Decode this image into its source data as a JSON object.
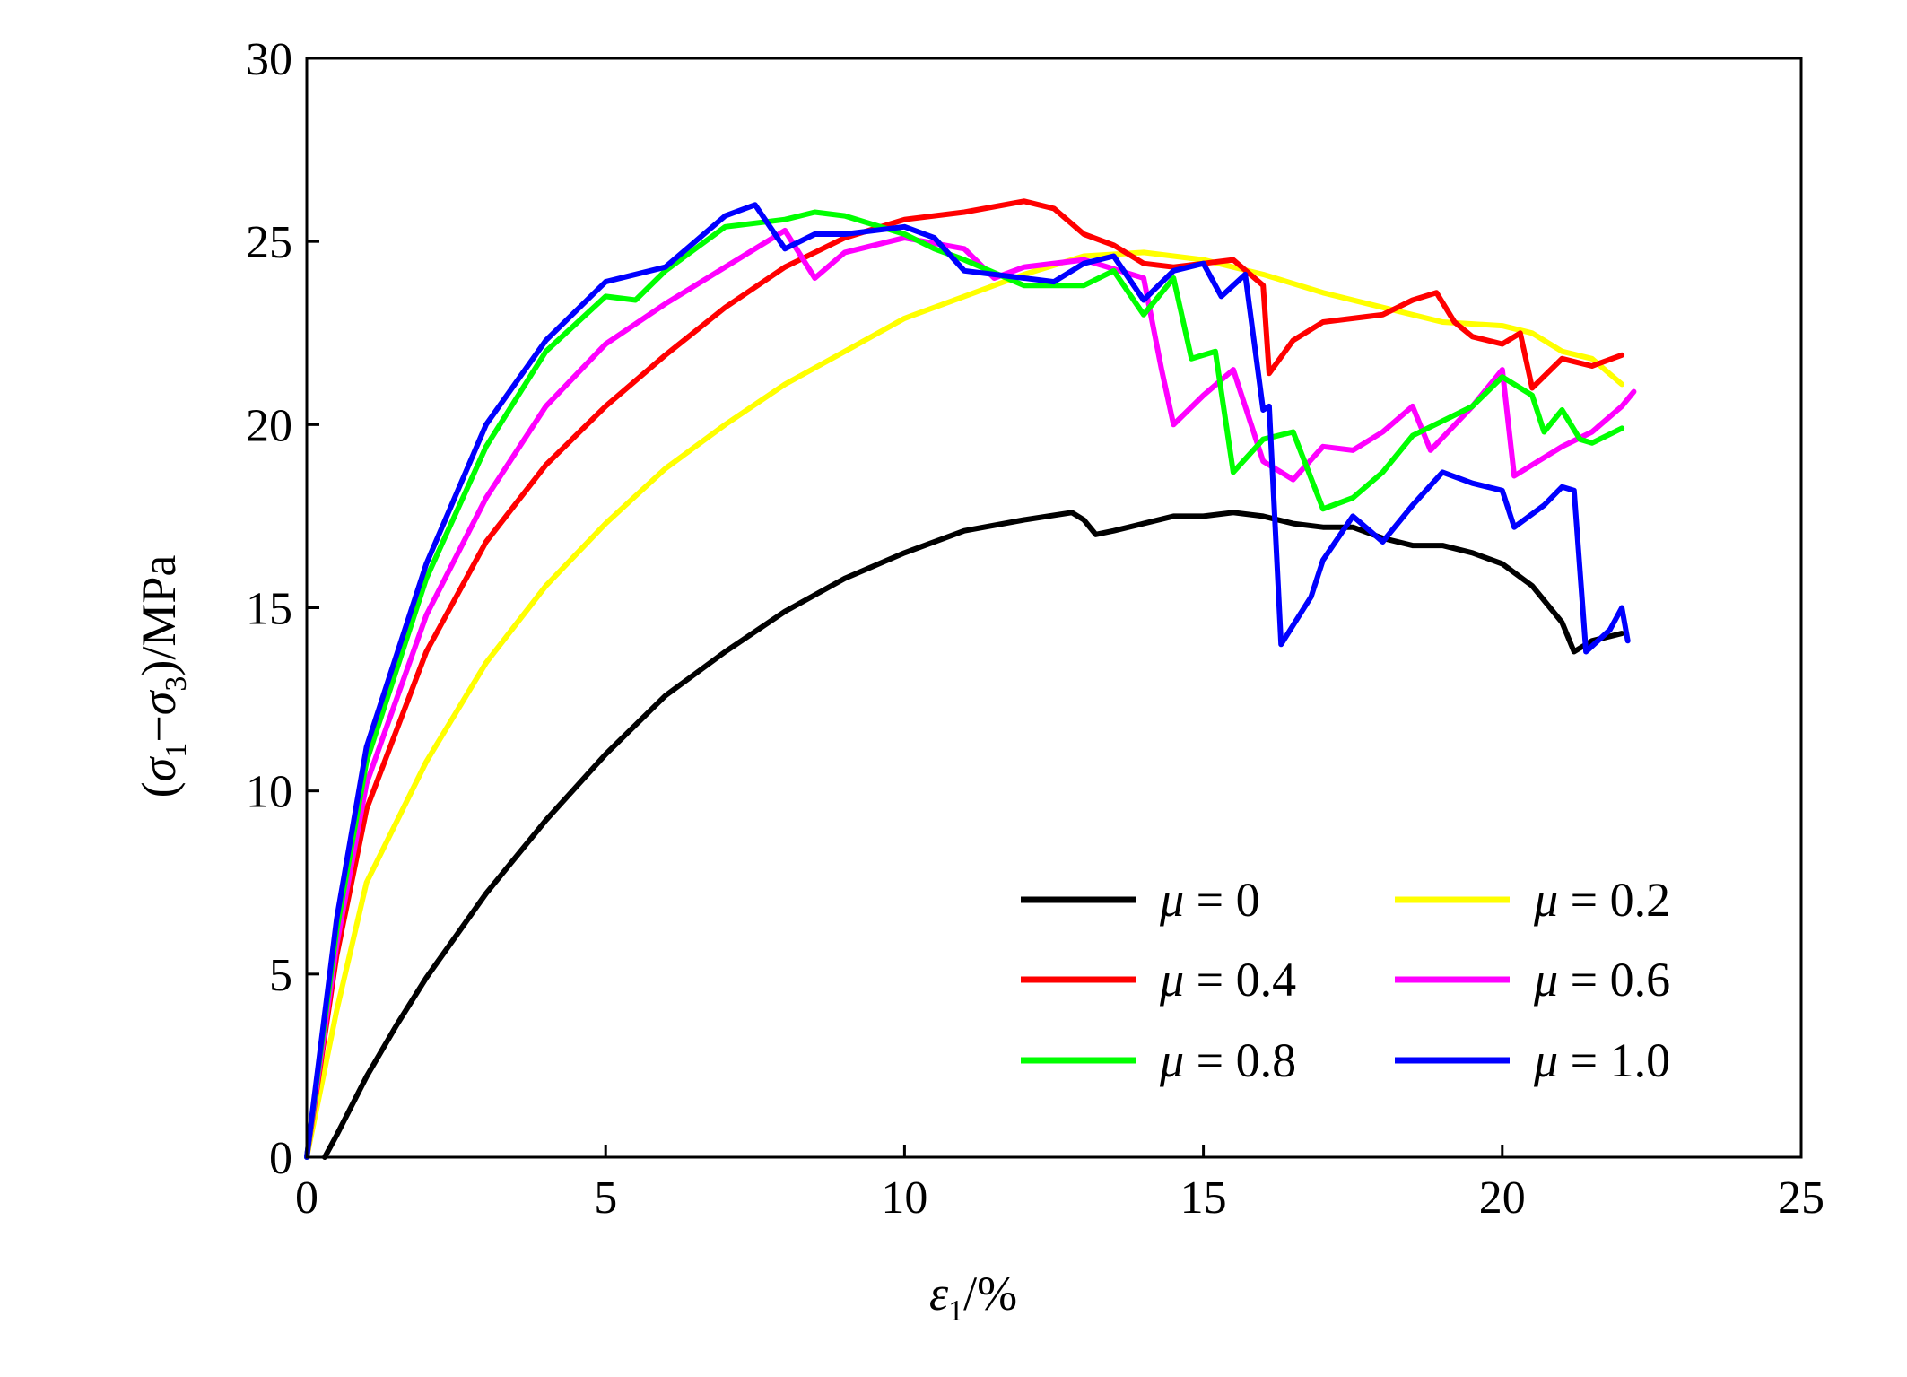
{
  "chart_data": {
    "type": "line",
    "xlabel": {
      "var": "ε",
      "sub": "1",
      "rest": "/%"
    },
    "ylabel": {
      "open": "(",
      "v1": "σ",
      "s1": "1",
      "minus": "−",
      "v2": "σ",
      "s2": "3",
      "rest": ")/MPa"
    },
    "xlim": [
      0,
      25
    ],
    "ylim": [
      0,
      30
    ],
    "xticks": [
      0,
      5,
      10,
      15,
      20,
      25
    ],
    "yticks": [
      0,
      5,
      10,
      15,
      20,
      25,
      30
    ],
    "grid": false,
    "legend_position": "lower-right",
    "series": [
      {
        "name": "μ = 0",
        "sym": "μ",
        "eq": " = 0",
        "color": "#000000",
        "points": [
          [
            0.3,
            0
          ],
          [
            0.5,
            0.6
          ],
          [
            1,
            2.2
          ],
          [
            1.5,
            3.6
          ],
          [
            2,
            4.9
          ],
          [
            3,
            7.2
          ],
          [
            4,
            9.2
          ],
          [
            5,
            11
          ],
          [
            6,
            12.6
          ],
          [
            7,
            13.8
          ],
          [
            8,
            14.9
          ],
          [
            9,
            15.8
          ],
          [
            10,
            16.5
          ],
          [
            11,
            17.1
          ],
          [
            12,
            17.4
          ],
          [
            12.8,
            17.6
          ],
          [
            13,
            17.4
          ],
          [
            13.2,
            17.0
          ],
          [
            13.5,
            17.1
          ],
          [
            14,
            17.3
          ],
          [
            14.5,
            17.5
          ],
          [
            15,
            17.5
          ],
          [
            15.5,
            17.6
          ],
          [
            16,
            17.5
          ],
          [
            16.5,
            17.3
          ],
          [
            17,
            17.2
          ],
          [
            17.5,
            17.2
          ],
          [
            18,
            16.9
          ],
          [
            18.5,
            16.7
          ],
          [
            19,
            16.7
          ],
          [
            19.5,
            16.5
          ],
          [
            20,
            16.2
          ],
          [
            20.5,
            15.6
          ],
          [
            21,
            14.6
          ],
          [
            21.2,
            13.8
          ],
          [
            21.5,
            14.1
          ],
          [
            22,
            14.3
          ]
        ]
      },
      {
        "name": "μ = 0.2",
        "sym": "μ",
        "eq": " = 0.2",
        "color": "#ffff00",
        "points": [
          [
            0,
            0
          ],
          [
            0.5,
            4
          ],
          [
            1,
            7.5
          ],
          [
            2,
            10.8
          ],
          [
            3,
            13.5
          ],
          [
            4,
            15.6
          ],
          [
            5,
            17.3
          ],
          [
            6,
            18.8
          ],
          [
            7,
            20.0
          ],
          [
            8,
            21.1
          ],
          [
            9,
            22.0
          ],
          [
            10,
            22.9
          ],
          [
            11,
            23.5
          ],
          [
            12,
            24.1
          ],
          [
            13,
            24.6
          ],
          [
            14,
            24.7
          ],
          [
            15,
            24.5
          ],
          [
            16,
            24.1
          ],
          [
            17,
            23.6
          ],
          [
            18,
            23.2
          ],
          [
            19,
            22.8
          ],
          [
            20,
            22.7
          ],
          [
            20.5,
            22.5
          ],
          [
            21,
            22.0
          ],
          [
            21.5,
            21.8
          ],
          [
            22,
            21.1
          ]
        ]
      },
      {
        "name": "μ = 0.4",
        "sym": "μ",
        "eq": " = 0.4",
        "color": "#ff0000",
        "points": [
          [
            0,
            0
          ],
          [
            0.5,
            5.5
          ],
          [
            1,
            9.5
          ],
          [
            2,
            13.8
          ],
          [
            3,
            16.8
          ],
          [
            4,
            18.9
          ],
          [
            5,
            20.5
          ],
          [
            6,
            21.9
          ],
          [
            7,
            23.2
          ],
          [
            8,
            24.3
          ],
          [
            9,
            25.1
          ],
          [
            10,
            25.6
          ],
          [
            11,
            25.8
          ],
          [
            12,
            26.1
          ],
          [
            12.5,
            25.9
          ],
          [
            13,
            25.2
          ],
          [
            13.5,
            24.9
          ],
          [
            14,
            24.4
          ],
          [
            14.5,
            24.3
          ],
          [
            15,
            24.4
          ],
          [
            15.5,
            24.5
          ],
          [
            16,
            23.8
          ],
          [
            16.1,
            21.4
          ],
          [
            16.5,
            22.3
          ],
          [
            17,
            22.8
          ],
          [
            17.5,
            22.9
          ],
          [
            18,
            23.0
          ],
          [
            18.5,
            23.4
          ],
          [
            18.9,
            23.6
          ],
          [
            19.2,
            22.8
          ],
          [
            19.5,
            22.4
          ],
          [
            20,
            22.2
          ],
          [
            20.3,
            22.5
          ],
          [
            20.5,
            21.0
          ],
          [
            21,
            21.8
          ],
          [
            21.5,
            21.6
          ],
          [
            22,
            21.9
          ]
        ]
      },
      {
        "name": "μ = 0.6",
        "sym": "μ",
        "eq": " = 0.6",
        "color": "#ff00ff",
        "points": [
          [
            0,
            0
          ],
          [
            0.5,
            5.8
          ],
          [
            1,
            10.2
          ],
          [
            2,
            14.8
          ],
          [
            3,
            18.0
          ],
          [
            4,
            20.5
          ],
          [
            5,
            22.2
          ],
          [
            6,
            23.3
          ],
          [
            7,
            24.3
          ],
          [
            8,
            25.3
          ],
          [
            8.5,
            24.0
          ],
          [
            9,
            24.7
          ],
          [
            10,
            25.1
          ],
          [
            11,
            24.8
          ],
          [
            11.5,
            24.0
          ],
          [
            12,
            24.3
          ],
          [
            13,
            24.5
          ],
          [
            14,
            24.0
          ],
          [
            14.3,
            21.5
          ],
          [
            14.5,
            20.0
          ],
          [
            15,
            20.8
          ],
          [
            15.5,
            21.5
          ],
          [
            16,
            19.0
          ],
          [
            16.5,
            18.5
          ],
          [
            17,
            19.4
          ],
          [
            17.5,
            19.3
          ],
          [
            18,
            19.8
          ],
          [
            18.5,
            20.5
          ],
          [
            18.8,
            19.3
          ],
          [
            19.5,
            20.5
          ],
          [
            20,
            21.5
          ],
          [
            20.2,
            18.6
          ],
          [
            21,
            19.4
          ],
          [
            21.5,
            19.8
          ],
          [
            22,
            20.5
          ],
          [
            22.2,
            20.9
          ]
        ]
      },
      {
        "name": "μ = 0.8",
        "sym": "μ",
        "eq": " = 0.8",
        "color": "#00ff00",
        "points": [
          [
            0,
            0
          ],
          [
            0.5,
            6.2
          ],
          [
            1,
            10.8
          ],
          [
            2,
            15.8
          ],
          [
            3,
            19.4
          ],
          [
            4,
            22.0
          ],
          [
            5,
            23.5
          ],
          [
            5.5,
            23.4
          ],
          [
            6,
            24.2
          ],
          [
            7,
            25.4
          ],
          [
            8,
            25.6
          ],
          [
            8.5,
            25.8
          ],
          [
            9,
            25.7
          ],
          [
            10,
            25.2
          ],
          [
            10.5,
            24.8
          ],
          [
            11,
            24.5
          ],
          [
            12,
            23.8
          ],
          [
            13,
            23.8
          ],
          [
            13.5,
            24.2
          ],
          [
            14,
            23.0
          ],
          [
            14.5,
            24.0
          ],
          [
            14.8,
            21.8
          ],
          [
            15.2,
            22.0
          ],
          [
            15.5,
            18.7
          ],
          [
            16,
            19.6
          ],
          [
            16.5,
            19.8
          ],
          [
            17,
            17.7
          ],
          [
            17.5,
            18.0
          ],
          [
            18,
            18.7
          ],
          [
            18.5,
            19.7
          ],
          [
            19,
            20.1
          ],
          [
            19.5,
            20.5
          ],
          [
            20,
            21.3
          ],
          [
            20.5,
            20.8
          ],
          [
            20.7,
            19.8
          ],
          [
            21,
            20.4
          ],
          [
            21.3,
            19.6
          ],
          [
            21.5,
            19.5
          ],
          [
            22,
            19.9
          ]
        ]
      },
      {
        "name": "μ = 1.0",
        "sym": "μ",
        "eq": " = 1.0",
        "color": "#0000ff",
        "points": [
          [
            0,
            0
          ],
          [
            0.5,
            6.5
          ],
          [
            1,
            11.2
          ],
          [
            2,
            16.2
          ],
          [
            3,
            20.0
          ],
          [
            4,
            22.3
          ],
          [
            5,
            23.9
          ],
          [
            6,
            24.3
          ],
          [
            7,
            25.7
          ],
          [
            7.5,
            26.0
          ],
          [
            8,
            24.8
          ],
          [
            8.5,
            25.2
          ],
          [
            9,
            25.2
          ],
          [
            10,
            25.4
          ],
          [
            10.5,
            25.1
          ],
          [
            11,
            24.2
          ],
          [
            12,
            24.0
          ],
          [
            12.5,
            23.9
          ],
          [
            13,
            24.4
          ],
          [
            13.5,
            24.6
          ],
          [
            14,
            23.4
          ],
          [
            14.5,
            24.2
          ],
          [
            15,
            24.4
          ],
          [
            15.3,
            23.5
          ],
          [
            15.7,
            24.1
          ],
          [
            16,
            20.4
          ],
          [
            16.1,
            20.5
          ],
          [
            16.3,
            14.0
          ],
          [
            16.8,
            15.3
          ],
          [
            17,
            16.3
          ],
          [
            17.5,
            17.5
          ],
          [
            18,
            16.8
          ],
          [
            18.5,
            17.8
          ],
          [
            19,
            18.7
          ],
          [
            19.5,
            18.4
          ],
          [
            20,
            18.2
          ],
          [
            20.2,
            17.2
          ],
          [
            20.7,
            17.8
          ],
          [
            21,
            18.3
          ],
          [
            21.2,
            18.2
          ],
          [
            21.4,
            13.8
          ],
          [
            21.8,
            14.4
          ],
          [
            22,
            15.0
          ],
          [
            22.1,
            14.1
          ]
        ]
      }
    ]
  }
}
